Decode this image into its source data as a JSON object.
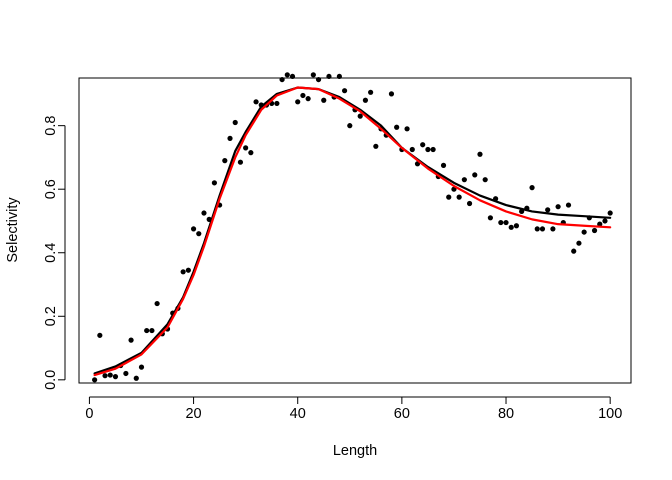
{
  "chart_data": {
    "type": "scatter",
    "title": "",
    "xlabel": "Length",
    "ylabel": "Selectivity",
    "xlim": [
      -2,
      104
    ],
    "ylim": [
      -0.01,
      0.95
    ],
    "x_ticks": [
      0,
      20,
      40,
      60,
      80,
      100
    ],
    "y_ticks": [
      0.0,
      0.2,
      0.4,
      0.6,
      0.8
    ],
    "x_tick_labels": [
      "0",
      "20",
      "40",
      "60",
      "80",
      "100"
    ],
    "y_tick_labels": [
      "0.0",
      "0.2",
      "0.4",
      "0.6",
      "0.8"
    ],
    "grid": false,
    "legend": "none",
    "series": [
      {
        "kind": "points",
        "color": "#000000",
        "x": [
          1,
          2,
          3,
          4,
          5,
          6,
          7,
          8,
          9,
          10,
          11,
          12,
          13,
          14,
          15,
          16,
          17,
          18,
          19,
          20,
          21,
          22,
          23,
          24,
          25,
          26,
          27,
          28,
          29,
          30,
          31,
          32,
          33,
          34,
          35,
          36,
          37,
          38,
          39,
          40,
          41,
          42,
          43,
          44,
          45,
          46,
          47,
          48,
          49,
          50,
          51,
          52,
          53,
          54,
          55,
          56,
          57,
          58,
          59,
          60,
          61,
          62,
          63,
          64,
          65,
          66,
          67,
          68,
          69,
          70,
          71,
          72,
          73,
          74,
          75,
          76,
          77,
          78,
          79,
          80,
          81,
          82,
          83,
          84,
          85,
          86,
          87,
          88,
          89,
          90,
          91,
          92,
          93,
          94,
          95,
          96,
          97,
          98,
          99,
          100
        ],
        "y": [
          0.0,
          0.14,
          0.013,
          0.015,
          0.01,
          0.045,
          0.02,
          0.125,
          0.005,
          0.04,
          0.155,
          0.155,
          0.24,
          0.145,
          0.16,
          0.21,
          0.225,
          0.34,
          0.345,
          0.475,
          0.46,
          0.525,
          0.505,
          0.62,
          0.55,
          0.69,
          0.76,
          0.81,
          0.685,
          0.73,
          0.715,
          0.875,
          0.865,
          0.865,
          0.87,
          0.87,
          0.945,
          0.96,
          0.955,
          0.875,
          0.895,
          0.885,
          0.96,
          0.945,
          0.88,
          0.955,
          0.89,
          0.955,
          0.91,
          0.8,
          0.85,
          0.83,
          0.88,
          0.905,
          0.735,
          0.79,
          0.77,
          0.9,
          0.795,
          0.725,
          0.79,
          0.725,
          0.68,
          0.74,
          0.725,
          0.725,
          0.64,
          0.675,
          0.575,
          0.6,
          0.575,
          0.63,
          0.555,
          0.645,
          0.71,
          0.63,
          0.51,
          0.57,
          0.495,
          0.495,
          0.48,
          0.485,
          0.53,
          0.54,
          0.605,
          0.475,
          0.475,
          0.535,
          0.475,
          0.545,
          0.495,
          0.55,
          0.405,
          0.43,
          0.465,
          0.51,
          0.47,
          0.49,
          0.5,
          0.525
        ]
      },
      {
        "kind": "line",
        "color": "#000000",
        "x": [
          1,
          5,
          10,
          15,
          18,
          20,
          22,
          25,
          28,
          30,
          33,
          36,
          40,
          44,
          48,
          52,
          56,
          60,
          65,
          70,
          75,
          80,
          85,
          90,
          95,
          100
        ],
        "y": [
          0.02,
          0.042,
          0.085,
          0.175,
          0.26,
          0.34,
          0.43,
          0.58,
          0.72,
          0.78,
          0.86,
          0.9,
          0.92,
          0.915,
          0.89,
          0.85,
          0.8,
          0.73,
          0.67,
          0.62,
          0.58,
          0.55,
          0.53,
          0.52,
          0.515,
          0.51
        ]
      },
      {
        "kind": "line",
        "color": "#ff0000",
        "x": [
          1,
          5,
          10,
          15,
          18,
          20,
          22,
          25,
          28,
          30,
          33,
          36,
          40,
          44,
          48,
          52,
          56,
          60,
          65,
          70,
          75,
          80,
          85,
          90,
          95,
          100
        ],
        "y": [
          0.015,
          0.035,
          0.08,
          0.165,
          0.255,
          0.33,
          0.42,
          0.57,
          0.7,
          0.77,
          0.85,
          0.895,
          0.92,
          0.915,
          0.885,
          0.845,
          0.79,
          0.73,
          0.665,
          0.61,
          0.565,
          0.53,
          0.505,
          0.49,
          0.485,
          0.48
        ]
      }
    ]
  }
}
